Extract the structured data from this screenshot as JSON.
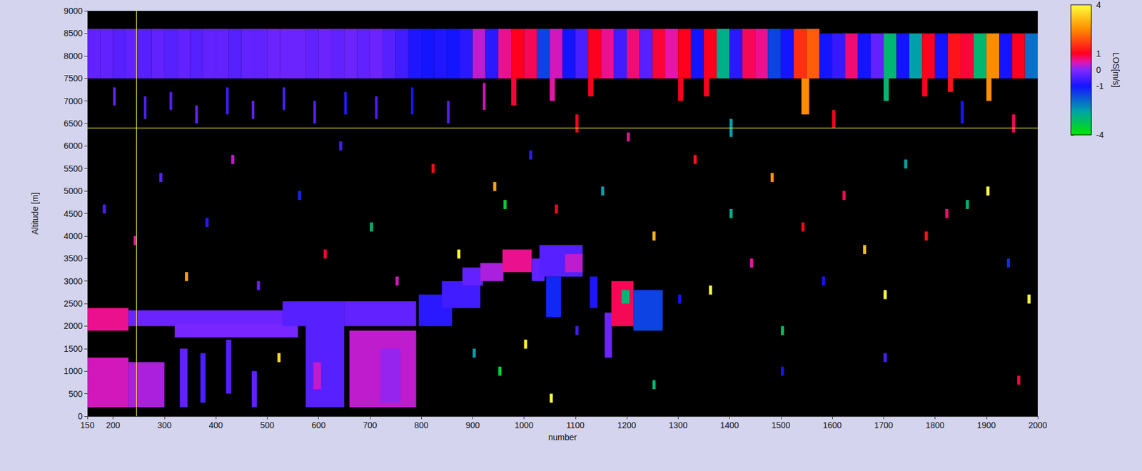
{
  "chart_data": {
    "type": "heatmap",
    "x_label": "number",
    "y_label": "Altitude [m]",
    "xlim": [
      150,
      2000
    ],
    "xticks": [
      150,
      200,
      300,
      400,
      500,
      600,
      700,
      800,
      900,
      1000,
      1100,
      1200,
      1300,
      1400,
      1500,
      1600,
      1700,
      1800,
      1900,
      2000
    ],
    "ylim": [
      0,
      9000
    ],
    "yticks": [
      0,
      500,
      1000,
      1500,
      2000,
      2500,
      3000,
      3500,
      4000,
      4500,
      5000,
      5500,
      6000,
      6500,
      7000,
      7500,
      8000,
      8500,
      9000
    ],
    "grid": false,
    "colorbar": {
      "label": "LOS[m/s]",
      "range": [
        -4,
        4
      ],
      "ticks": [
        -4,
        -1,
        0,
        1,
        4
      ]
    },
    "cursor": {
      "x": 245,
      "y": 6400
    },
    "cells": [
      [
        150,
        175,
        7500,
        8600,
        -0.3
      ],
      [
        175,
        200,
        7500,
        8600,
        -0.3
      ],
      [
        200,
        225,
        7500,
        8600,
        -0.4
      ],
      [
        225,
        250,
        7500,
        8600,
        -0.3
      ],
      [
        250,
        275,
        7500,
        8600,
        -0.4
      ],
      [
        275,
        300,
        7500,
        8600,
        -0.3
      ],
      [
        300,
        325,
        7500,
        8600,
        -0.4
      ],
      [
        325,
        350,
        7500,
        8600,
        -0.3
      ],
      [
        350,
        375,
        7500,
        8600,
        -0.4
      ],
      [
        375,
        400,
        7500,
        8600,
        -0.3
      ],
      [
        400,
        425,
        7500,
        8600,
        -0.3
      ],
      [
        425,
        450,
        7500,
        8600,
        -0.4
      ],
      [
        450,
        475,
        7500,
        8600,
        -0.3
      ],
      [
        475,
        500,
        7500,
        8600,
        -0.3
      ],
      [
        500,
        525,
        7500,
        8600,
        -0.2
      ],
      [
        525,
        550,
        7500,
        8600,
        -0.2
      ],
      [
        550,
        575,
        7500,
        8600,
        -0.2
      ],
      [
        575,
        600,
        7500,
        8600,
        -0.3
      ],
      [
        600,
        625,
        7500,
        8600,
        -0.2
      ],
      [
        625,
        650,
        7500,
        8600,
        -0.3
      ],
      [
        650,
        675,
        7500,
        8600,
        -0.2
      ],
      [
        675,
        700,
        7500,
        8600,
        -0.3
      ],
      [
        700,
        725,
        7500,
        8600,
        -0.2
      ],
      [
        725,
        750,
        7500,
        8600,
        -0.4
      ],
      [
        750,
        775,
        7500,
        8600,
        -0.6
      ],
      [
        775,
        800,
        7500,
        8600,
        -0.9
      ],
      [
        800,
        825,
        7500,
        8600,
        -1.0
      ],
      [
        825,
        850,
        7500,
        8600,
        -0.9
      ],
      [
        850,
        875,
        7500,
        8600,
        -1.0
      ],
      [
        875,
        900,
        7500,
        8600,
        -0.8
      ],
      [
        900,
        925,
        7500,
        8600,
        0.3
      ],
      [
        925,
        950,
        7500,
        8600,
        -0.8
      ],
      [
        950,
        975,
        7500,
        8600,
        0.6
      ],
      [
        975,
        1000,
        7500,
        8600,
        1.0
      ],
      [
        1000,
        1025,
        7500,
        8600,
        0.8
      ],
      [
        1025,
        1050,
        7500,
        8600,
        -1.5
      ],
      [
        1050,
        1075,
        7500,
        8600,
        0.4
      ],
      [
        1075,
        1100,
        7500,
        8600,
        -1.0
      ],
      [
        1100,
        1125,
        7500,
        8600,
        -0.5
      ],
      [
        1125,
        1150,
        7500,
        8600,
        1.0
      ],
      [
        1150,
        1175,
        7500,
        8600,
        0.6
      ],
      [
        1175,
        1200,
        7500,
        8600,
        -0.6
      ],
      [
        1200,
        1225,
        7500,
        8600,
        0.7
      ],
      [
        1225,
        1250,
        7500,
        8600,
        -0.4
      ],
      [
        1250,
        1275,
        7500,
        8600,
        0.9
      ],
      [
        1275,
        1300,
        7500,
        8600,
        0.5
      ],
      [
        1300,
        1325,
        7500,
        8600,
        1.0
      ],
      [
        1325,
        1350,
        7500,
        8600,
        -1.0
      ],
      [
        1350,
        1375,
        7500,
        8600,
        1.0
      ],
      [
        1375,
        1400,
        7500,
        8600,
        -2.8
      ],
      [
        1400,
        1425,
        7500,
        8600,
        -0.8
      ],
      [
        1425,
        1450,
        7500,
        8600,
        0.8
      ],
      [
        1450,
        1475,
        7500,
        8600,
        0.6
      ],
      [
        1475,
        1500,
        7500,
        8600,
        -1.5
      ],
      [
        1500,
        1525,
        7500,
        8600,
        -1.0
      ],
      [
        1525,
        1550,
        7500,
        8600,
        1.5
      ],
      [
        1550,
        1575,
        7500,
        8600,
        2.0
      ],
      [
        1575,
        1600,
        7500,
        8500,
        -1.0
      ],
      [
        1600,
        1625,
        7500,
        8500,
        -0.7
      ],
      [
        1625,
        1650,
        7500,
        8500,
        0.7
      ],
      [
        1650,
        1675,
        7500,
        8500,
        -1.0
      ],
      [
        1675,
        1700,
        7500,
        8500,
        -0.3
      ],
      [
        1700,
        1725,
        7500,
        8500,
        -3.0
      ],
      [
        1725,
        1750,
        7500,
        8500,
        -1.0
      ],
      [
        1750,
        1775,
        7500,
        8500,
        -2.5
      ],
      [
        1775,
        1800,
        7500,
        8500,
        1.0
      ],
      [
        1800,
        1825,
        7500,
        8500,
        -1.0
      ],
      [
        1825,
        1850,
        7500,
        8500,
        1.2
      ],
      [
        1850,
        1875,
        7500,
        8500,
        0.9
      ],
      [
        1875,
        1900,
        7500,
        8500,
        -3.0
      ],
      [
        1900,
        1925,
        7500,
        8500,
        2.5
      ],
      [
        1925,
        1950,
        7500,
        8500,
        -1.0
      ],
      [
        1950,
        1975,
        7500,
        8500,
        1.0
      ],
      [
        1975,
        2000,
        7500,
        8500,
        -2.0
      ],
      [
        975,
        985,
        6900,
        7500,
        0.9
      ],
      [
        1050,
        1060,
        7000,
        7500,
        0.5
      ],
      [
        1125,
        1135,
        7100,
        7500,
        1.0
      ],
      [
        1300,
        1310,
        7000,
        7500,
        1.0
      ],
      [
        1350,
        1360,
        7100,
        7500,
        1.0
      ],
      [
        1540,
        1555,
        6700,
        7500,
        2.5
      ],
      [
        1700,
        1710,
        7000,
        7500,
        -3.0
      ],
      [
        1775,
        1785,
        7100,
        7500,
        1.0
      ],
      [
        1825,
        1835,
        7200,
        7500,
        1.2
      ],
      [
        1900,
        1910,
        7000,
        7500,
        2.5
      ],
      [
        200,
        205,
        6900,
        7300,
        -0.3
      ],
      [
        260,
        265,
        6600,
        7100,
        -0.5
      ],
      [
        310,
        315,
        6800,
        7200,
        -0.4
      ],
      [
        360,
        365,
        6500,
        6900,
        -0.3
      ],
      [
        420,
        425,
        6700,
        7300,
        -0.6
      ],
      [
        470,
        475,
        6600,
        7000,
        -0.3
      ],
      [
        530,
        535,
        6800,
        7300,
        -0.5
      ],
      [
        590,
        595,
        6500,
        7000,
        -0.4
      ],
      [
        650,
        655,
        6700,
        7200,
        -0.8
      ],
      [
        710,
        715,
        6600,
        7100,
        -0.5
      ],
      [
        780,
        785,
        6700,
        7300,
        -1.0
      ],
      [
        850,
        855,
        6500,
        7000,
        -0.4
      ],
      [
        920,
        925,
        6800,
        7400,
        0.4
      ],
      [
        150,
        230,
        1900,
        2400,
        0.6
      ],
      [
        230,
        530,
        2000,
        2350,
        -0.2
      ],
      [
        320,
        560,
        1750,
        2050,
        -0.1
      ],
      [
        530,
        650,
        2000,
        2550,
        -0.4
      ],
      [
        650,
        790,
        2000,
        2550,
        -0.3
      ],
      [
        150,
        230,
        200,
        1300,
        0.4
      ],
      [
        230,
        300,
        200,
        1200,
        0.2
      ],
      [
        330,
        345,
        200,
        1500,
        -0.3
      ],
      [
        370,
        380,
        300,
        1400,
        -0.5
      ],
      [
        420,
        430,
        500,
        1700,
        -0.4
      ],
      [
        470,
        480,
        200,
        1000,
        -0.3
      ],
      [
        575,
        650,
        200,
        2500,
        -0.4
      ],
      [
        590,
        605,
        600,
        1200,
        0.3
      ],
      [
        660,
        790,
        200,
        1900,
        0.3
      ],
      [
        720,
        760,
        300,
        1500,
        0.1
      ],
      [
        795,
        860,
        2000,
        2700,
        -0.8
      ],
      [
        840,
        915,
        2400,
        3000,
        -0.6
      ],
      [
        880,
        920,
        2900,
        3300,
        -0.3
      ],
      [
        915,
        960,
        3000,
        3400,
        0.2
      ],
      [
        958,
        1015,
        3200,
        3700,
        0.6
      ],
      [
        1015,
        1040,
        3000,
        3500,
        -0.3
      ],
      [
        1030,
        1114,
        3100,
        3800,
        -0.4
      ],
      [
        1043,
        1072,
        2200,
        3100,
        -1.2
      ],
      [
        1080,
        1114,
        3200,
        3600,
        0.3
      ],
      [
        1128,
        1143,
        2400,
        3100,
        -0.9
      ],
      [
        1157,
        1171,
        1300,
        2300,
        -0.2
      ],
      [
        1170,
        1213,
        2000,
        3000,
        0.8
      ],
      [
        1213,
        1270,
        1900,
        2800,
        -1.5
      ],
      [
        1190,
        1205,
        2500,
        2800,
        -3.0
      ],
      [
        180,
        186,
        4500,
        4700,
        -0.5
      ],
      [
        240,
        246,
        3800,
        4000,
        0.5
      ],
      [
        290,
        296,
        5200,
        5400,
        -0.4
      ],
      [
        340,
        346,
        3000,
        3200,
        2.8
      ],
      [
        380,
        386,
        4200,
        4400,
        -0.8
      ],
      [
        430,
        436,
        5600,
        5800,
        0.3
      ],
      [
        480,
        486,
        2800,
        3000,
        -0.3
      ],
      [
        520,
        526,
        1200,
        1400,
        3.5
      ],
      [
        560,
        566,
        4800,
        5000,
        -1.2
      ],
      [
        610,
        616,
        3500,
        3700,
        0.9
      ],
      [
        640,
        646,
        5900,
        6100,
        -0.6
      ],
      [
        700,
        706,
        4100,
        4300,
        -3.0
      ],
      [
        750,
        756,
        2900,
        3100,
        0.4
      ],
      [
        820,
        826,
        5400,
        5600,
        1.1
      ],
      [
        870,
        876,
        3500,
        3700,
        4.0
      ],
      [
        900,
        906,
        1300,
        1500,
        -2.5
      ],
      [
        940,
        946,
        5000,
        5200,
        2.8
      ],
      [
        960,
        966,
        4600,
        4800,
        -3.5
      ],
      [
        1000,
        1006,
        1500,
        1700,
        3.8
      ],
      [
        1010,
        1016,
        5700,
        5900,
        -0.8
      ],
      [
        1060,
        1066,
        4500,
        4700,
        1.0
      ],
      [
        1100,
        1106,
        1800,
        2000,
        -0.6
      ],
      [
        1150,
        1156,
        4900,
        5100,
        -2.5
      ],
      [
        1200,
        1206,
        6100,
        6300,
        0.6
      ],
      [
        1250,
        1256,
        3900,
        4100,
        3.0
      ],
      [
        1300,
        1306,
        2500,
        2700,
        -1.0
      ],
      [
        1330,
        1336,
        5600,
        5800,
        1.2
      ],
      [
        1360,
        1366,
        2700,
        2900,
        4.0
      ],
      [
        1400,
        1406,
        4400,
        4600,
        -2.8
      ],
      [
        1440,
        1446,
        3300,
        3500,
        0.5
      ],
      [
        1480,
        1486,
        5200,
        5400,
        2.6
      ],
      [
        1500,
        1506,
        1800,
        2000,
        -3.2
      ],
      [
        1540,
        1546,
        4100,
        4300,
        1.0
      ],
      [
        1580,
        1586,
        2900,
        3100,
        -1.0
      ],
      [
        1620,
        1626,
        4800,
        5000,
        0.8
      ],
      [
        1660,
        1666,
        3600,
        3800,
        3.2
      ],
      [
        1700,
        1706,
        2600,
        2800,
        4.0
      ],
      [
        1740,
        1746,
        5500,
        5700,
        -2.6
      ],
      [
        1780,
        1786,
        3900,
        4100,
        1.2
      ],
      [
        1820,
        1826,
        4400,
        4600,
        0.7
      ],
      [
        1860,
        1866,
        4600,
        4800,
        -3.0
      ],
      [
        1900,
        1906,
        4900,
        5100,
        4.0
      ],
      [
        1940,
        1946,
        3300,
        3500,
        -1.2
      ],
      [
        1980,
        1986,
        2500,
        2700,
        4.0
      ],
      [
        1960,
        1966,
        700,
        900,
        0.9
      ],
      [
        1700,
        1706,
        1200,
        1400,
        -0.5
      ],
      [
        1500,
        1506,
        900,
        1100,
        -1.0
      ],
      [
        1250,
        1256,
        600,
        800,
        -3.0
      ],
      [
        1050,
        1056,
        300,
        500,
        4.0
      ],
      [
        950,
        956,
        900,
        1100,
        -3.5
      ],
      [
        1100,
        1106,
        6300,
        6700,
        1.0
      ],
      [
        1400,
        1406,
        6200,
        6600,
        -2.5
      ],
      [
        1600,
        1606,
        6400,
        6800,
        1.0
      ],
      [
        1850,
        1856,
        6500,
        7000,
        -1.0
      ],
      [
        1950,
        1956,
        6300,
        6700,
        0.8
      ]
    ]
  }
}
